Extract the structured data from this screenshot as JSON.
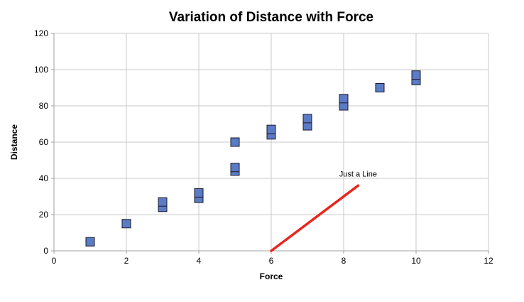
{
  "chart_data": {
    "type": "scatter",
    "title": "Variation of Distance with Force",
    "xlabel": "Force",
    "ylabel": "Distance",
    "xlim": [
      0,
      12
    ],
    "ylim": [
      0,
      120
    ],
    "xticks": [
      0,
      2,
      4,
      6,
      8,
      10,
      12
    ],
    "yticks": [
      0,
      20,
      40,
      60,
      80,
      100,
      120
    ],
    "grid": true,
    "colors": {
      "marker_fill": "#5b7bc4",
      "marker_stroke": "#1a1a2e",
      "line": "#e8261e"
    },
    "series": [
      {
        "type": "scatter",
        "marker": "square",
        "points": [
          [
            1,
            5
          ],
          [
            2,
            15
          ],
          [
            3,
            24
          ],
          [
            3,
            27
          ],
          [
            4,
            29
          ],
          [
            4,
            32
          ],
          [
            5,
            44
          ],
          [
            5,
            46
          ],
          [
            5,
            60
          ],
          [
            6,
            64
          ],
          [
            6,
            67
          ],
          [
            7,
            69
          ],
          [
            7,
            73
          ],
          [
            8,
            80
          ],
          [
            8,
            84
          ],
          [
            9,
            90
          ],
          [
            10,
            94
          ],
          [
            10,
            97
          ]
        ]
      },
      {
        "type": "line",
        "points": [
          [
            6,
            0
          ],
          [
            8.4,
            36
          ]
        ]
      }
    ],
    "annotations": [
      {
        "text": "Just a Line",
        "x": 8.4,
        "y": 41
      }
    ]
  }
}
